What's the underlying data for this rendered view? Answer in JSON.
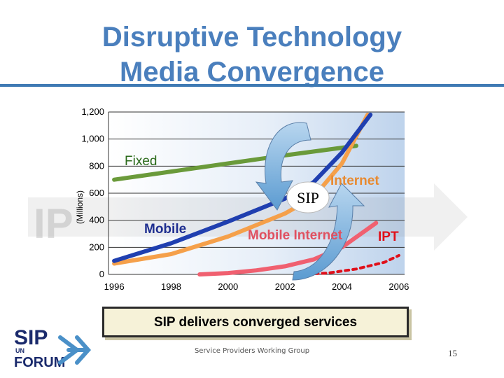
{
  "title_line1": "Disruptive Technology",
  "title_line2": "Media Convergence",
  "banner": "SIP delivers converged services",
  "footer": "Service Providers Working Group",
  "page_number": "15",
  "logo": {
    "line1": "SIP",
    "line2": "FORUM",
    "small": "UN"
  },
  "colors": {
    "title": "#4a7fbd",
    "fixed": "#6a9a3a",
    "internet": "#f5a04a",
    "mobile": "#1f3fb0",
    "mobile_internet": "#f06070",
    "ipt": "#e0101a",
    "sip_arrow": "#7fb2dc"
  },
  "chart_data": {
    "type": "line",
    "ylabel": "(Millions)",
    "ylim": [
      0,
      1200
    ],
    "xlim": [
      1995.8,
      2006.2
    ],
    "yticks": [
      "0",
      "200",
      "400",
      "600",
      "800",
      "1,000",
      "1,200"
    ],
    "ytick_values": [
      0,
      200,
      400,
      600,
      800,
      1000,
      1200
    ],
    "xticks": [
      "1996",
      "1998",
      "2000",
      "2002",
      "2004",
      "2006"
    ],
    "xtick_values": [
      1996,
      1998,
      2000,
      2002,
      2004,
      2006
    ],
    "grid": true,
    "series": [
      {
        "name": "Fixed",
        "color": "#6a9a3a",
        "x": [
          1996,
          1998,
          2000,
          2002,
          2004.5
        ],
        "y": [
          700,
          760,
          820,
          880,
          950
        ]
      },
      {
        "name": "Internet",
        "color": "#f5a04a",
        "x": [
          1996,
          1998,
          2000,
          2002,
          2003,
          2004,
          2004.9
        ],
        "y": [
          80,
          150,
          280,
          450,
          570,
          820,
          1180
        ]
      },
      {
        "name": "Mobile",
        "color": "#1f3fb0",
        "x": [
          1996,
          1998,
          2000,
          2002,
          2003,
          2004,
          2005
        ],
        "y": [
          100,
          230,
          390,
          560,
          680,
          900,
          1180
        ]
      },
      {
        "name": "Mobile Internet",
        "color": "#f06070",
        "x": [
          1999,
          2000,
          2001,
          2002,
          2003,
          2004,
          2005.2
        ],
        "y": [
          0,
          10,
          30,
          60,
          110,
          200,
          380
        ]
      },
      {
        "name": "IPT",
        "color": "#e0101a",
        "x": [
          2002.5,
          2003.5,
          2004.5,
          2005.5,
          2006
        ],
        "y": [
          0,
          10,
          40,
          90,
          140
        ]
      }
    ],
    "annotations": [
      "SIP",
      "IP"
    ]
  }
}
